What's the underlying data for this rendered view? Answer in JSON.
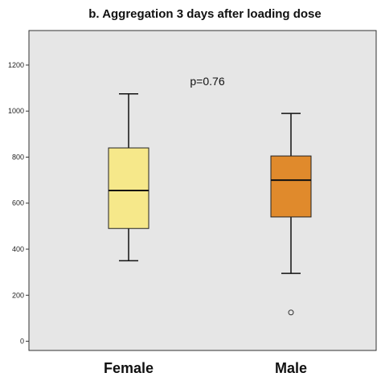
{
  "chart_data": {
    "type": "boxplot",
    "title": "b. Aggregation 3 days after loading dose",
    "annotation": "p=0.76",
    "ylim": [
      -40,
      1350
    ],
    "yticks": [
      0,
      200,
      400,
      600,
      800,
      1000,
      1200
    ],
    "grid": false,
    "categories": [
      "Female",
      "Male"
    ],
    "boxes": [
      {
        "category": "Female",
        "whisker_low": 350,
        "q1": 490,
        "median": 655,
        "q3": 840,
        "whisker_high": 1075,
        "outliers": [],
        "color": "#f6e88a"
      },
      {
        "category": "Male",
        "whisker_low": 295,
        "q1": 540,
        "median": 700,
        "q3": 805,
        "whisker_high": 990,
        "outliers": [
          125
        ],
        "color": "#e08a2c"
      }
    ],
    "plot_bg": "#e6e6e6"
  }
}
